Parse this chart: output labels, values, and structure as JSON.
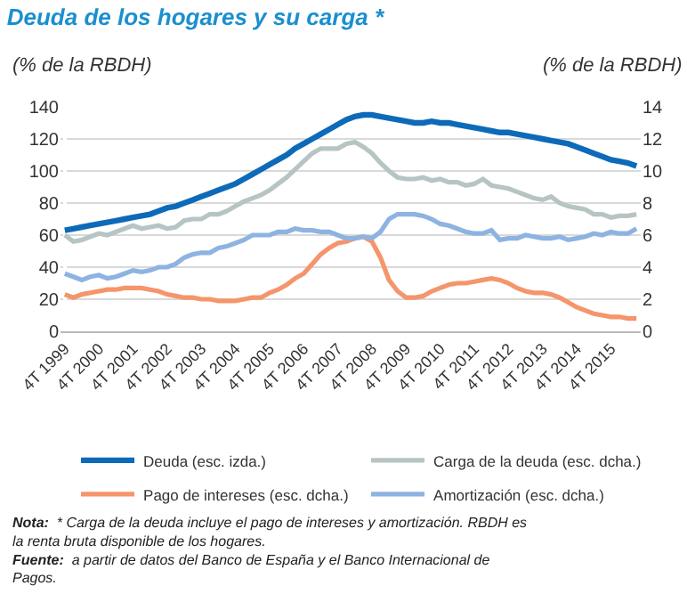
{
  "chart_data": {
    "type": "line",
    "title": "Deuda de los hogares y su carga *",
    "ylabel": "(% de la RBDH)",
    "y2label": "(% de la RBDH)",
    "categories": [
      "4T 1999",
      null,
      null,
      null,
      "4T 2000",
      null,
      null,
      null,
      "4T 2001",
      null,
      null,
      null,
      "4T 2002",
      null,
      null,
      null,
      "4T 2003",
      null,
      null,
      null,
      "4T 2004",
      null,
      null,
      null,
      "4T 2005",
      null,
      null,
      null,
      "4T 2006",
      null,
      null,
      null,
      "4T 2007",
      null,
      null,
      null,
      "4T 2008",
      null,
      null,
      null,
      "4T 2009",
      null,
      null,
      null,
      "4T 2010",
      null,
      null,
      null,
      "4T 2011",
      null,
      null,
      null,
      "4T 2012",
      null,
      null,
      null,
      "4T 2013",
      null,
      null,
      null,
      "4T 2014",
      null,
      null,
      null,
      "4T 2015",
      null,
      null,
      null
    ],
    "series": [
      {
        "name": "Deuda (esc. izda.)",
        "color": "#0d6ab8",
        "values": [
          63,
          64,
          65,
          66,
          67,
          68,
          69,
          70,
          71,
          72,
          73,
          75,
          77,
          78,
          80,
          82,
          84,
          86,
          88,
          90,
          92,
          95,
          98,
          101,
          104,
          107,
          110,
          114,
          117,
          120,
          123,
          126,
          129,
          132,
          134,
          135,
          135,
          134,
          133,
          132,
          131,
          130,
          130,
          131,
          130,
          130,
          129,
          128,
          127,
          126,
          125,
          124,
          124,
          123,
          122,
          121,
          120,
          119,
          118,
          117,
          115,
          113,
          111,
          109,
          107,
          106,
          105,
          103
        ]
      },
      {
        "name": "Carga de la deuda (esc. dcha.)",
        "color": "#b7c4c4",
        "axis": "y2",
        "values": [
          6.0,
          5.6,
          5.7,
          5.9,
          6.1,
          6.0,
          6.2,
          6.4,
          6.6,
          6.4,
          6.5,
          6.6,
          6.4,
          6.5,
          6.9,
          7.0,
          7.0,
          7.3,
          7.3,
          7.5,
          7.8,
          8.1,
          8.3,
          8.5,
          8.8,
          9.2,
          9.6,
          10.1,
          10.6,
          11.1,
          11.4,
          11.4,
          11.4,
          11.7,
          11.8,
          11.5,
          11.1,
          10.5,
          10.0,
          9.6,
          9.5,
          9.5,
          9.6,
          9.4,
          9.5,
          9.3,
          9.3,
          9.1,
          9.2,
          9.5,
          9.1,
          9.0,
          8.9,
          8.7,
          8.5,
          8.3,
          8.2,
          8.4,
          8.0,
          7.8,
          7.7,
          7.6,
          7.3,
          7.3,
          7.1,
          7.2,
          7.2,
          7.3
        ]
      },
      {
        "name": "Pago de intereses (esc. dcha.)",
        "color": "#f5956b",
        "axis": "y2",
        "values": [
          2.3,
          2.1,
          2.3,
          2.4,
          2.5,
          2.6,
          2.6,
          2.7,
          2.7,
          2.7,
          2.6,
          2.5,
          2.3,
          2.2,
          2.1,
          2.1,
          2.0,
          2.0,
          1.9,
          1.9,
          1.9,
          2.0,
          2.1,
          2.1,
          2.4,
          2.6,
          2.9,
          3.3,
          3.6,
          4.2,
          4.8,
          5.2,
          5.5,
          5.6,
          5.8,
          5.9,
          5.6,
          4.6,
          3.2,
          2.5,
          2.1,
          2.1,
          2.2,
          2.5,
          2.7,
          2.9,
          3.0,
          3.0,
          3.1,
          3.2,
          3.3,
          3.2,
          3.0,
          2.7,
          2.5,
          2.4,
          2.4,
          2.3,
          2.1,
          1.8,
          1.5,
          1.3,
          1.1,
          1.0,
          0.9,
          0.9,
          0.8,
          0.8
        ]
      },
      {
        "name": "Amortización (esc. dcha.)",
        "color": "#8db3e2",
        "axis": "y2",
        "values": [
          3.6,
          3.4,
          3.2,
          3.4,
          3.5,
          3.3,
          3.4,
          3.6,
          3.8,
          3.7,
          3.8,
          4.0,
          4.0,
          4.2,
          4.6,
          4.8,
          4.9,
          4.9,
          5.2,
          5.3,
          5.5,
          5.7,
          6.0,
          6.0,
          6.0,
          6.2,
          6.2,
          6.4,
          6.3,
          6.3,
          6.2,
          6.2,
          6.0,
          5.8,
          5.8,
          5.9,
          5.8,
          6.2,
          7.0,
          7.3,
          7.3,
          7.3,
          7.2,
          7.0,
          6.7,
          6.6,
          6.4,
          6.2,
          6.1,
          6.1,
          6.3,
          5.7,
          5.8,
          5.8,
          6.0,
          5.9,
          5.8,
          5.8,
          5.9,
          5.7,
          5.8,
          5.9,
          6.1,
          6.0,
          6.2,
          6.1,
          6.1,
          6.4
        ]
      }
    ],
    "ylim": [
      0,
      140
    ],
    "yticks": [
      0,
      20,
      40,
      60,
      80,
      100,
      120,
      140
    ],
    "y2lim": [
      0,
      14
    ],
    "y2ticks": [
      0,
      2,
      4,
      6,
      8,
      10,
      12,
      14
    ],
    "grid": "y",
    "legend": "bottom",
    "marker": "none",
    "line_style": "solid",
    "annotations": [
      "Nota: * Carga de la deuda incluye el pago de intereses y amortización. RBDH es la renta bruta disponible de los hogares.",
      "Fuente: a partir de datos del Banco de España y el Banco Internacional de Pagos."
    ]
  }
}
